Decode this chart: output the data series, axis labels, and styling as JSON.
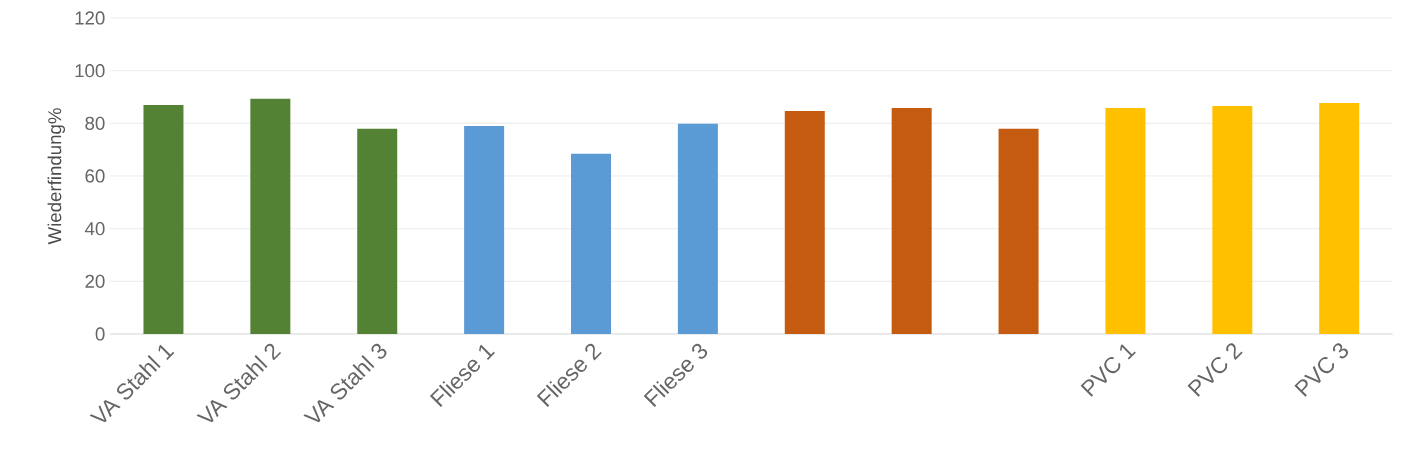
{
  "chart_data": {
    "type": "bar",
    "ylabel": "Wiederfindung%",
    "categories": [
      "VA Stahl 1",
      "VA Stahl 2",
      "VA Stahl 3",
      "Fliese 1",
      "Fliese 2",
      "Fliese 3",
      null,
      null,
      null,
      "PVC 1",
      "PVC 2",
      "PVC 3"
    ],
    "values": [
      87.0,
      89.3,
      77.9,
      79.0,
      68.4,
      79.8,
      84.7,
      85.8,
      77.9,
      85.8,
      86.6,
      87.7
    ],
    "colors": [
      "#548235",
      "#548235",
      "#548235",
      "#5b9bd5",
      "#5b9bd5",
      "#5b9bd5",
      "#c55a11",
      "#c55a11",
      "#c55a11",
      "#ffc000",
      "#ffc000",
      "#ffc000"
    ],
    "ylim": [
      0,
      120
    ],
    "yticks": [
      0,
      20,
      40,
      60,
      80,
      100,
      120
    ],
    "grid": "y"
  }
}
